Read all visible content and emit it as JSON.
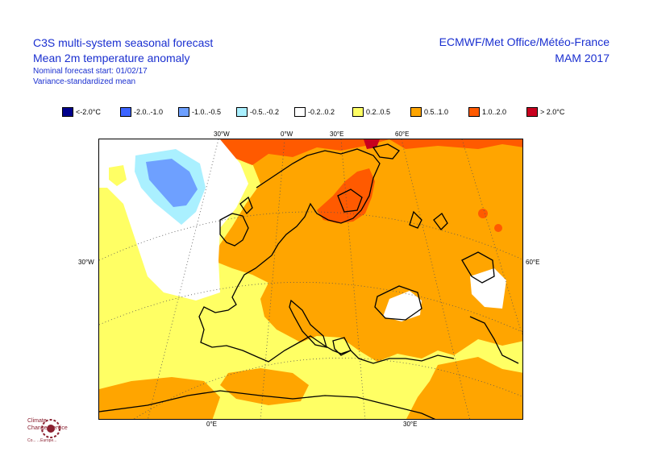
{
  "header": {
    "title_line1": "C3S multi-system seasonal forecast",
    "title_line2": "Mean 2m temperature anomaly",
    "subtitle_line1": "Nominal forecast start: 01/02/17",
    "subtitle_line2": "Variance-standardized mean",
    "source": "ECMWF/Met Office/Météo-France",
    "season": "MAM 2017"
  },
  "legend": [
    {
      "label": "<-2.0°C",
      "color": "#00008c"
    },
    {
      "label": "-2.0..-1.0",
      "color": "#3c64ff"
    },
    {
      "label": "-1.0..-0.5",
      "color": "#6ea0ff"
    },
    {
      "label": "-0.5..-0.2",
      "color": "#aaf0ff"
    },
    {
      "label": "-0.2..0.2",
      "color": "#ffffff"
    },
    {
      "label": "0.2..0.5",
      "color": "#ffff64"
    },
    {
      "label": "0.5..1.0",
      "color": "#ffa500"
    },
    {
      "label": "1.0..2.0",
      "color": "#ff5a00"
    },
    {
      "label": "> 2.0°C",
      "color": "#c8001e"
    }
  ],
  "axes": {
    "top": [
      "30°W",
      "0°W",
      "30°E",
      "60°E"
    ],
    "left": "30°W",
    "right": "60°E",
    "bottom": [
      "0°E",
      "30°E"
    ]
  },
  "logo": {
    "name_line1": "Climate",
    "name_line2": "Change Service",
    "small": "Co... ...Europe..."
  }
}
